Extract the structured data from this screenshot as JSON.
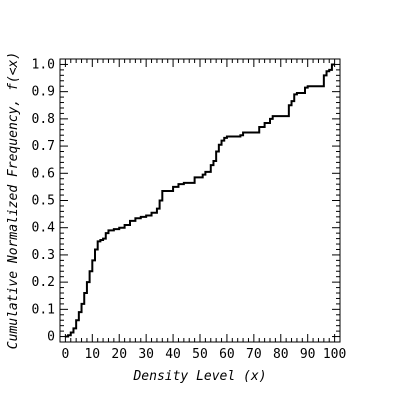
{
  "chart_data": {
    "type": "line",
    "step": true,
    "title": "",
    "xlabel": "Density Level (x)",
    "ylabel": "Cumulative Normalized Frequency, f(<x)",
    "xlim": [
      -2,
      102
    ],
    "ylim": [
      -0.02,
      1.02
    ],
    "x_ticks": [
      0,
      10,
      20,
      30,
      40,
      50,
      60,
      70,
      80,
      90,
      100
    ],
    "y_ticks": [
      0,
      0.1,
      0.2,
      0.3,
      0.4,
      0.5,
      0.6,
      0.7,
      0.8,
      0.9,
      1.0
    ],
    "x_tick_labels": [
      "0",
      "10",
      "20",
      "30",
      "40",
      "50",
      "60",
      "70",
      "80",
      "90",
      "100"
    ],
    "y_tick_labels": [
      "0",
      "0.1",
      "0.2",
      "0.3",
      "0.4",
      "0.5",
      "0.6",
      "0.7",
      "0.8",
      "0.9",
      "1.0"
    ],
    "x_minor_step": 2,
    "y_minor_step": 0.02,
    "grid": false,
    "legend": "none",
    "line_color": "#000000",
    "series": [
      {
        "x": [
          0,
          1,
          2,
          3,
          4,
          5,
          6,
          7,
          8,
          9,
          10,
          11,
          12,
          13,
          14,
          15,
          16,
          18,
          20,
          22,
          24,
          26,
          28,
          30,
          32,
          34,
          35,
          36,
          40,
          42,
          44,
          48,
          51,
          52,
          54,
          55,
          56,
          57,
          58,
          59,
          60,
          65,
          66,
          72,
          74,
          76,
          77,
          83,
          84,
          85,
          86,
          89,
          90,
          96,
          97,
          98,
          99,
          100
        ],
        "y": [
          0,
          0.005,
          0.015,
          0.03,
          0.06,
          0.09,
          0.12,
          0.16,
          0.2,
          0.24,
          0.28,
          0.32,
          0.35,
          0.355,
          0.36,
          0.38,
          0.39,
          0.395,
          0.4,
          0.41,
          0.425,
          0.435,
          0.44,
          0.445,
          0.455,
          0.47,
          0.5,
          0.535,
          0.55,
          0.56,
          0.565,
          0.585,
          0.595,
          0.605,
          0.63,
          0.645,
          0.68,
          0.705,
          0.72,
          0.73,
          0.735,
          0.74,
          0.75,
          0.77,
          0.785,
          0.8,
          0.81,
          0.85,
          0.865,
          0.89,
          0.895,
          0.915,
          0.92,
          0.96,
          0.975,
          0.98,
          1.0,
          1.0
        ]
      }
    ]
  }
}
